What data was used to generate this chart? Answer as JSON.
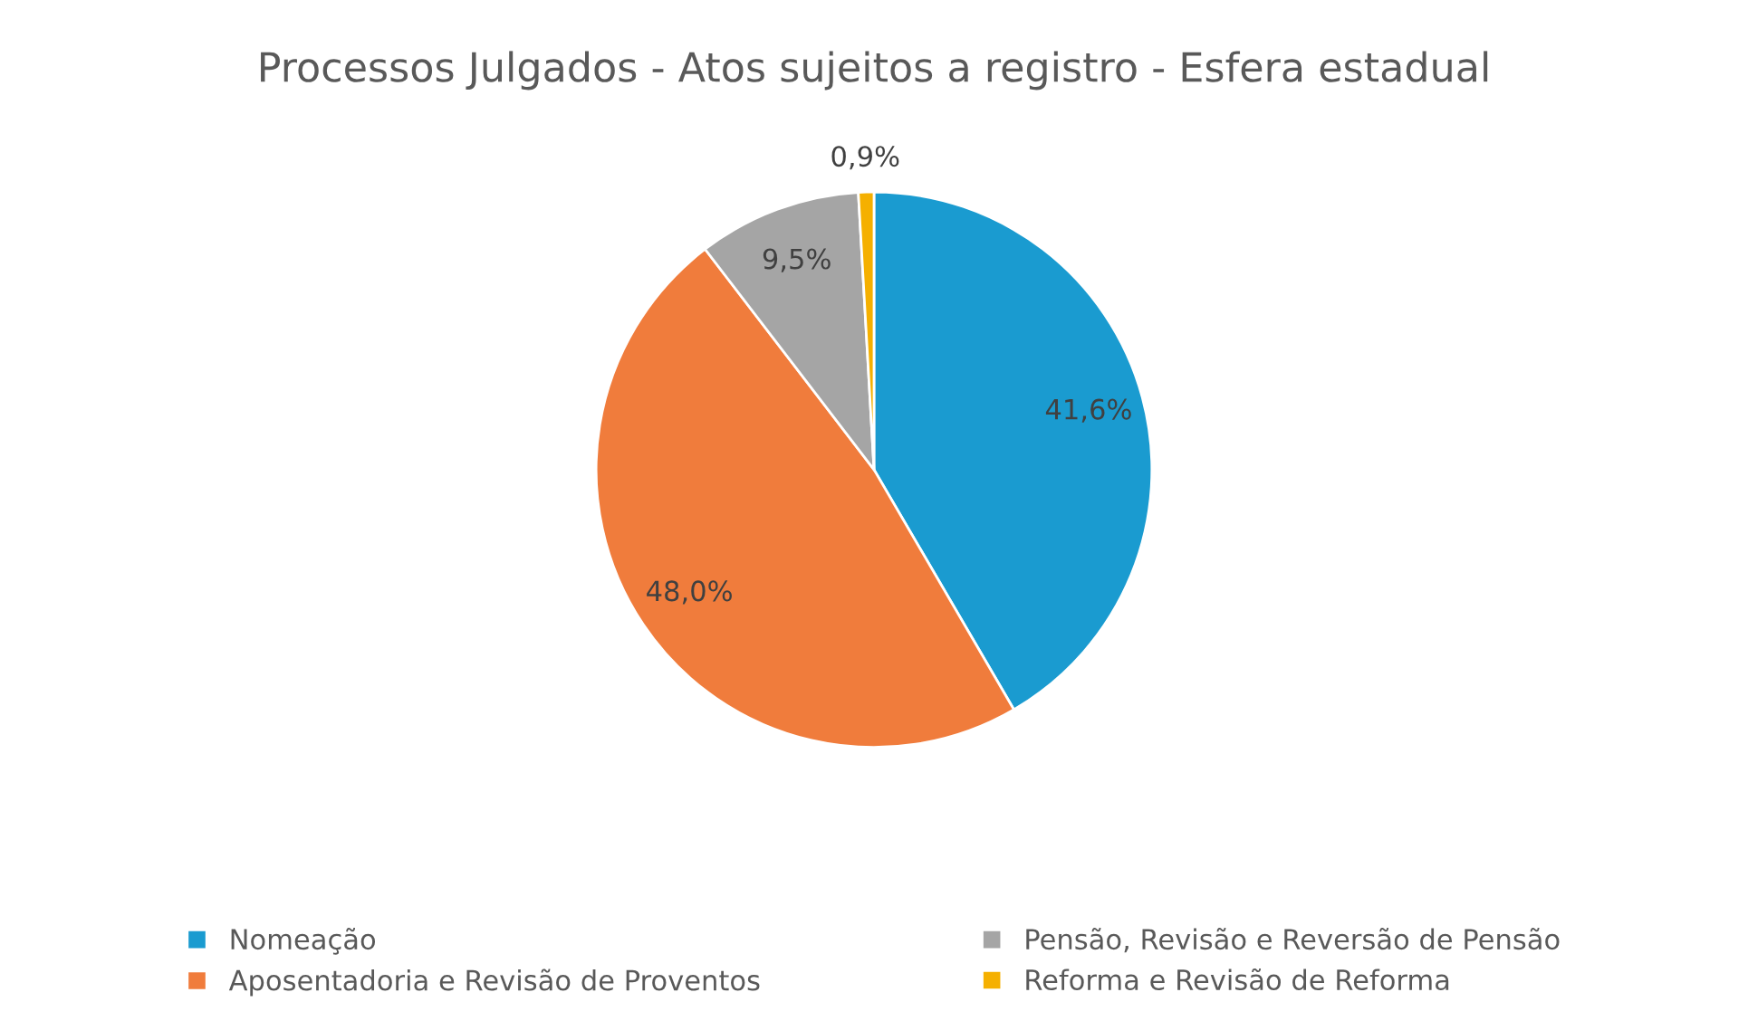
{
  "chart_data": {
    "type": "pie",
    "title": "Processos Julgados - Atos sujeitos a registro - Esfera estadual",
    "categories": [
      "Nomeação",
      "Aposentadoria e Revisão de Proventos",
      "Pensão, Revisão e Reversão de Pensão",
      "Reforma e Revisão de Reforma"
    ],
    "values": [
      41.6,
      48.0,
      9.5,
      0.9
    ],
    "value_labels": [
      "41,6%",
      "48,0%",
      "9,5%",
      "0,9%"
    ],
    "colors": [
      "#1a9bd0",
      "#f07c3c",
      "#a5a5a5",
      "#f5b000"
    ],
    "legend": "bottom"
  }
}
